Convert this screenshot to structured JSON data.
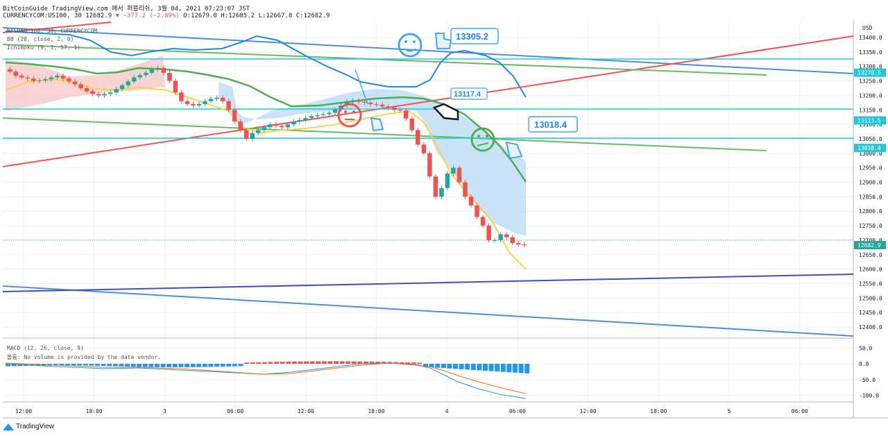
{
  "header": {
    "line1": "BitCoinGuide TradingView.com 에서 퍼블리쉬, 3월 04, 2021 07:23:07 JST",
    "symbol": "CURRENCYCOM:US100, 30 12682.9",
    "change": "▼ −377.2 (−2.89%)",
    "ohlc": "O:12679.0 H:12685.2 L:12667.8 C:12682.9"
  },
  "indicators": {
    "line1": "NASDAQ 100, 30, CURRENCYCOM",
    "line2": "BB (20, close, 2, 0)",
    "line3": "Ichimoku (9, 1, 57, 1)",
    "macd": "MACD (12, 26, close, 9)",
    "volume_note": "볼륨: No volume is provided by the data vendor."
  },
  "annotations": {
    "high_label": "13305.2",
    "mid_label": "13117.4",
    "low_label": "13018.4"
  },
  "price_axis": {
    "unit": "USD",
    "ticks": [
      "13400.0",
      "13350.0",
      "13300.0",
      "13250.0",
      "13200.0",
      "13150.0",
      "13100.0",
      "13050.0",
      "13000.0",
      "12950.0",
      "12900.0",
      "12850.0",
      "12800.0",
      "12750.0",
      "12700.0",
      "12650.0",
      "12600.0",
      "12550.0",
      "12500.0",
      "12450.0",
      "12400.0"
    ],
    "badges": [
      {
        "text": "13278.5",
        "color": "#26c6da"
      },
      {
        "text": "13113.5",
        "color": "#26c6da"
      },
      {
        "text": "13018.4",
        "color": "#26c6da"
      },
      {
        "text": "12682.9",
        "color": "#26a69a"
      }
    ]
  },
  "macd_axis": {
    "ticks": [
      "50.0",
      "0.0",
      "-50.0",
      "-100.0"
    ]
  },
  "time_axis": {
    "ticks": [
      "12:00",
      "18:00",
      "3",
      "06:00",
      "12:00",
      "18:00",
      "4",
      "06:00",
      "12:00",
      "18:00",
      "5",
      "06:00"
    ]
  },
  "brand": "TradingView",
  "chart_data": {
    "type": "candlestick",
    "title": "CURRENCYCOM:US100, 30",
    "ylim": [
      12380,
      13420
    ],
    "last_price": 12682.9,
    "levels": [
      13278.5,
      13113.5,
      13018.4
    ],
    "series": [
      {
        "name": "close",
        "values": [
          13282,
          13268,
          13262,
          13258,
          13250,
          13252,
          13256,
          13262,
          13268,
          13258,
          13248,
          13238,
          13225,
          13214,
          13205,
          13200,
          13205,
          13210,
          13222,
          13235,
          13248,
          13262,
          13270,
          13278,
          13290,
          13295,
          13278,
          13250,
          13210,
          13180,
          13170,
          13165,
          13170,
          13180,
          13188,
          13192,
          13180,
          13150,
          13110,
          13080,
          13050,
          13070,
          13080,
          13090,
          13100,
          13095,
          13090,
          13100,
          13110,
          13115,
          13122,
          13128,
          13132,
          13135,
          13140,
          13152,
          13165,
          13178,
          13182,
          13178,
          13175,
          13170,
          13168,
          13162,
          13158,
          13150,
          13148,
          13120,
          13080,
          13030,
          13000,
          12920,
          12850,
          12880,
          12930,
          12950,
          12900,
          12850,
          12820,
          12780,
          12750,
          12700,
          12700,
          12720,
          12710,
          12690,
          12685,
          12683
        ]
      }
    ]
  }
}
